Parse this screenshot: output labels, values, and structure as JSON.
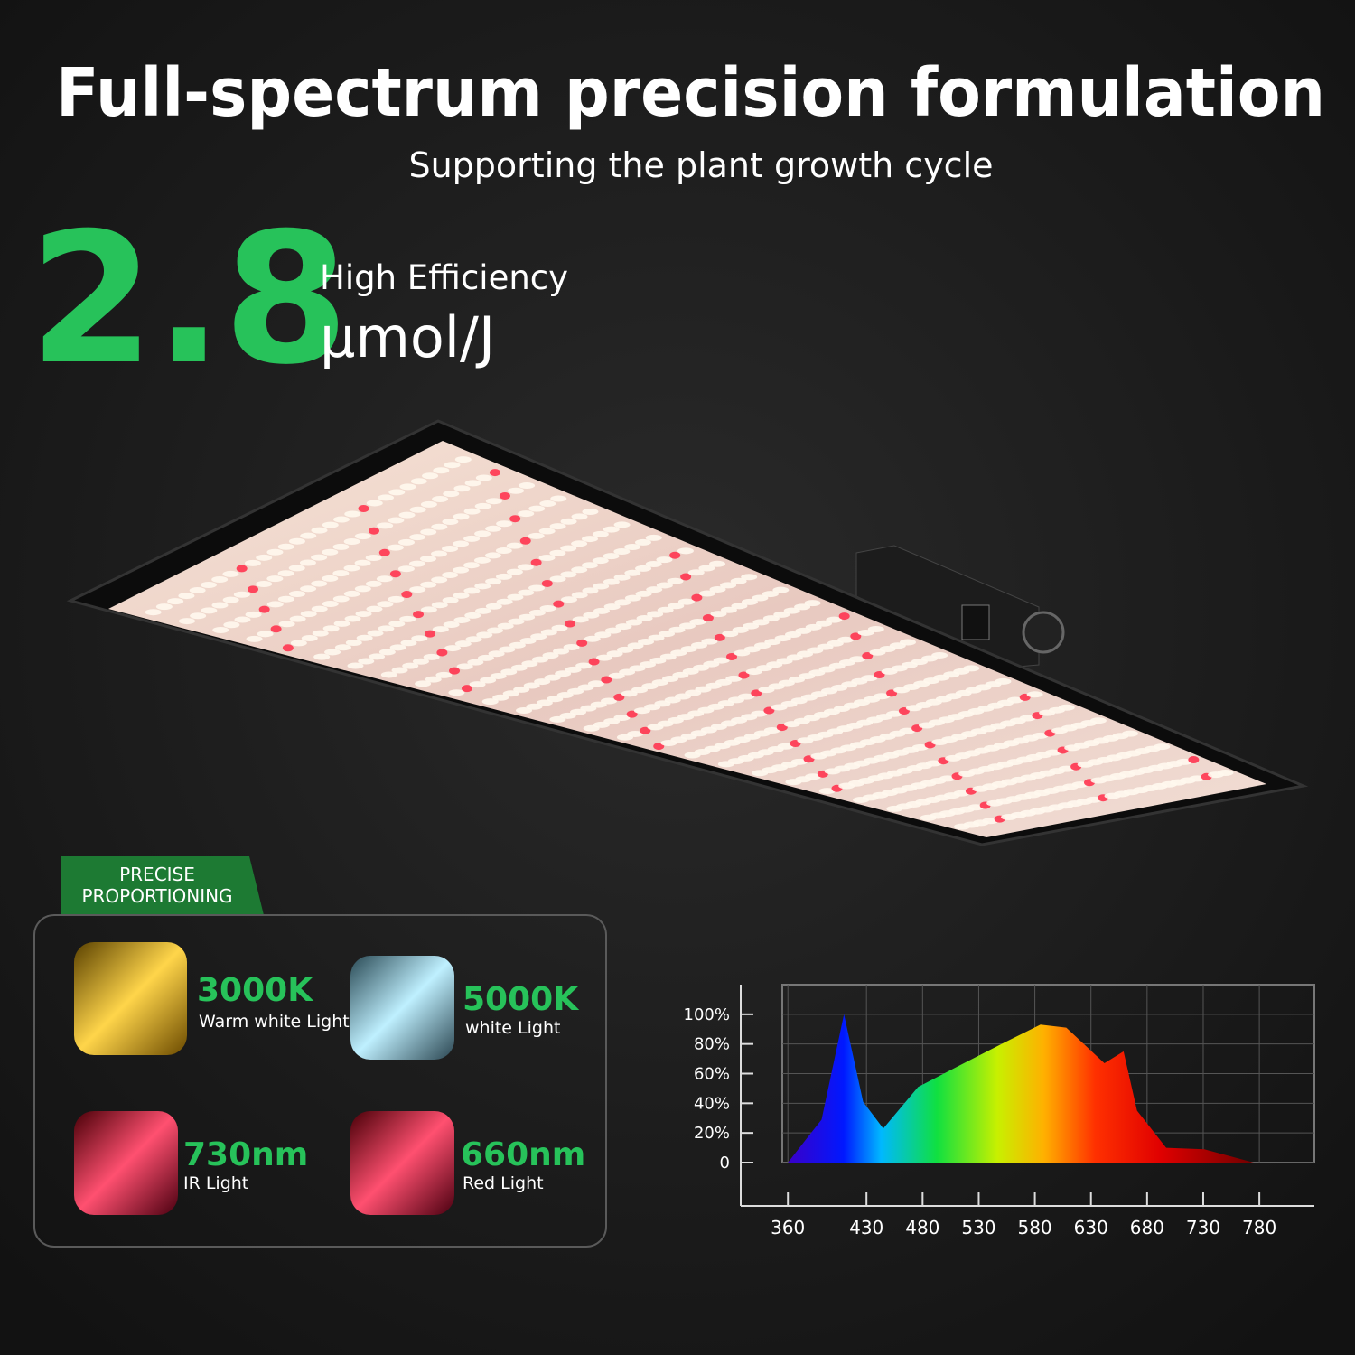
{
  "header": {
    "title": "Full-spectrum precision formulation",
    "subtitle": "Supporting the plant growth cycle"
  },
  "efficiency": {
    "value": "2.8",
    "label": "High Efficiency",
    "unit": "µmol/J"
  },
  "badge": {
    "lines": [
      "PRECISE",
      "PROPORTIONING"
    ]
  },
  "lights": [
    {
      "value": "3000K",
      "label": "Warm white Light"
    },
    {
      "value": "5000K",
      "label": "white Light"
    },
    {
      "value": "730nm",
      "label": "IR Light"
    },
    {
      "value": "660nm",
      "label": "Red Light"
    }
  ],
  "chart_data": {
    "type": "area",
    "x": [
      360,
      390,
      410,
      427,
      445,
      476,
      514,
      553,
      585,
      608,
      642,
      659,
      671,
      697,
      731,
      775
    ],
    "values": [
      0,
      29,
      100,
      41,
      23,
      51,
      66,
      81,
      93,
      91,
      67,
      75,
      35,
      10,
      9,
      0
    ],
    "xlim": [
      355,
      829
    ],
    "ylim": [
      0,
      120
    ],
    "xticks": [
      360,
      430,
      480,
      530,
      580,
      630,
      680,
      730,
      780
    ],
    "yticks": [
      0,
      {
        "value": 20,
        "label": "20%"
      },
      {
        "value": 40,
        "label": "40%"
      },
      {
        "value": 60,
        "label": "60%"
      },
      {
        "value": 80,
        "label": "80%"
      },
      {
        "value": 100,
        "label": "100%"
      }
    ],
    "grid": true
  }
}
